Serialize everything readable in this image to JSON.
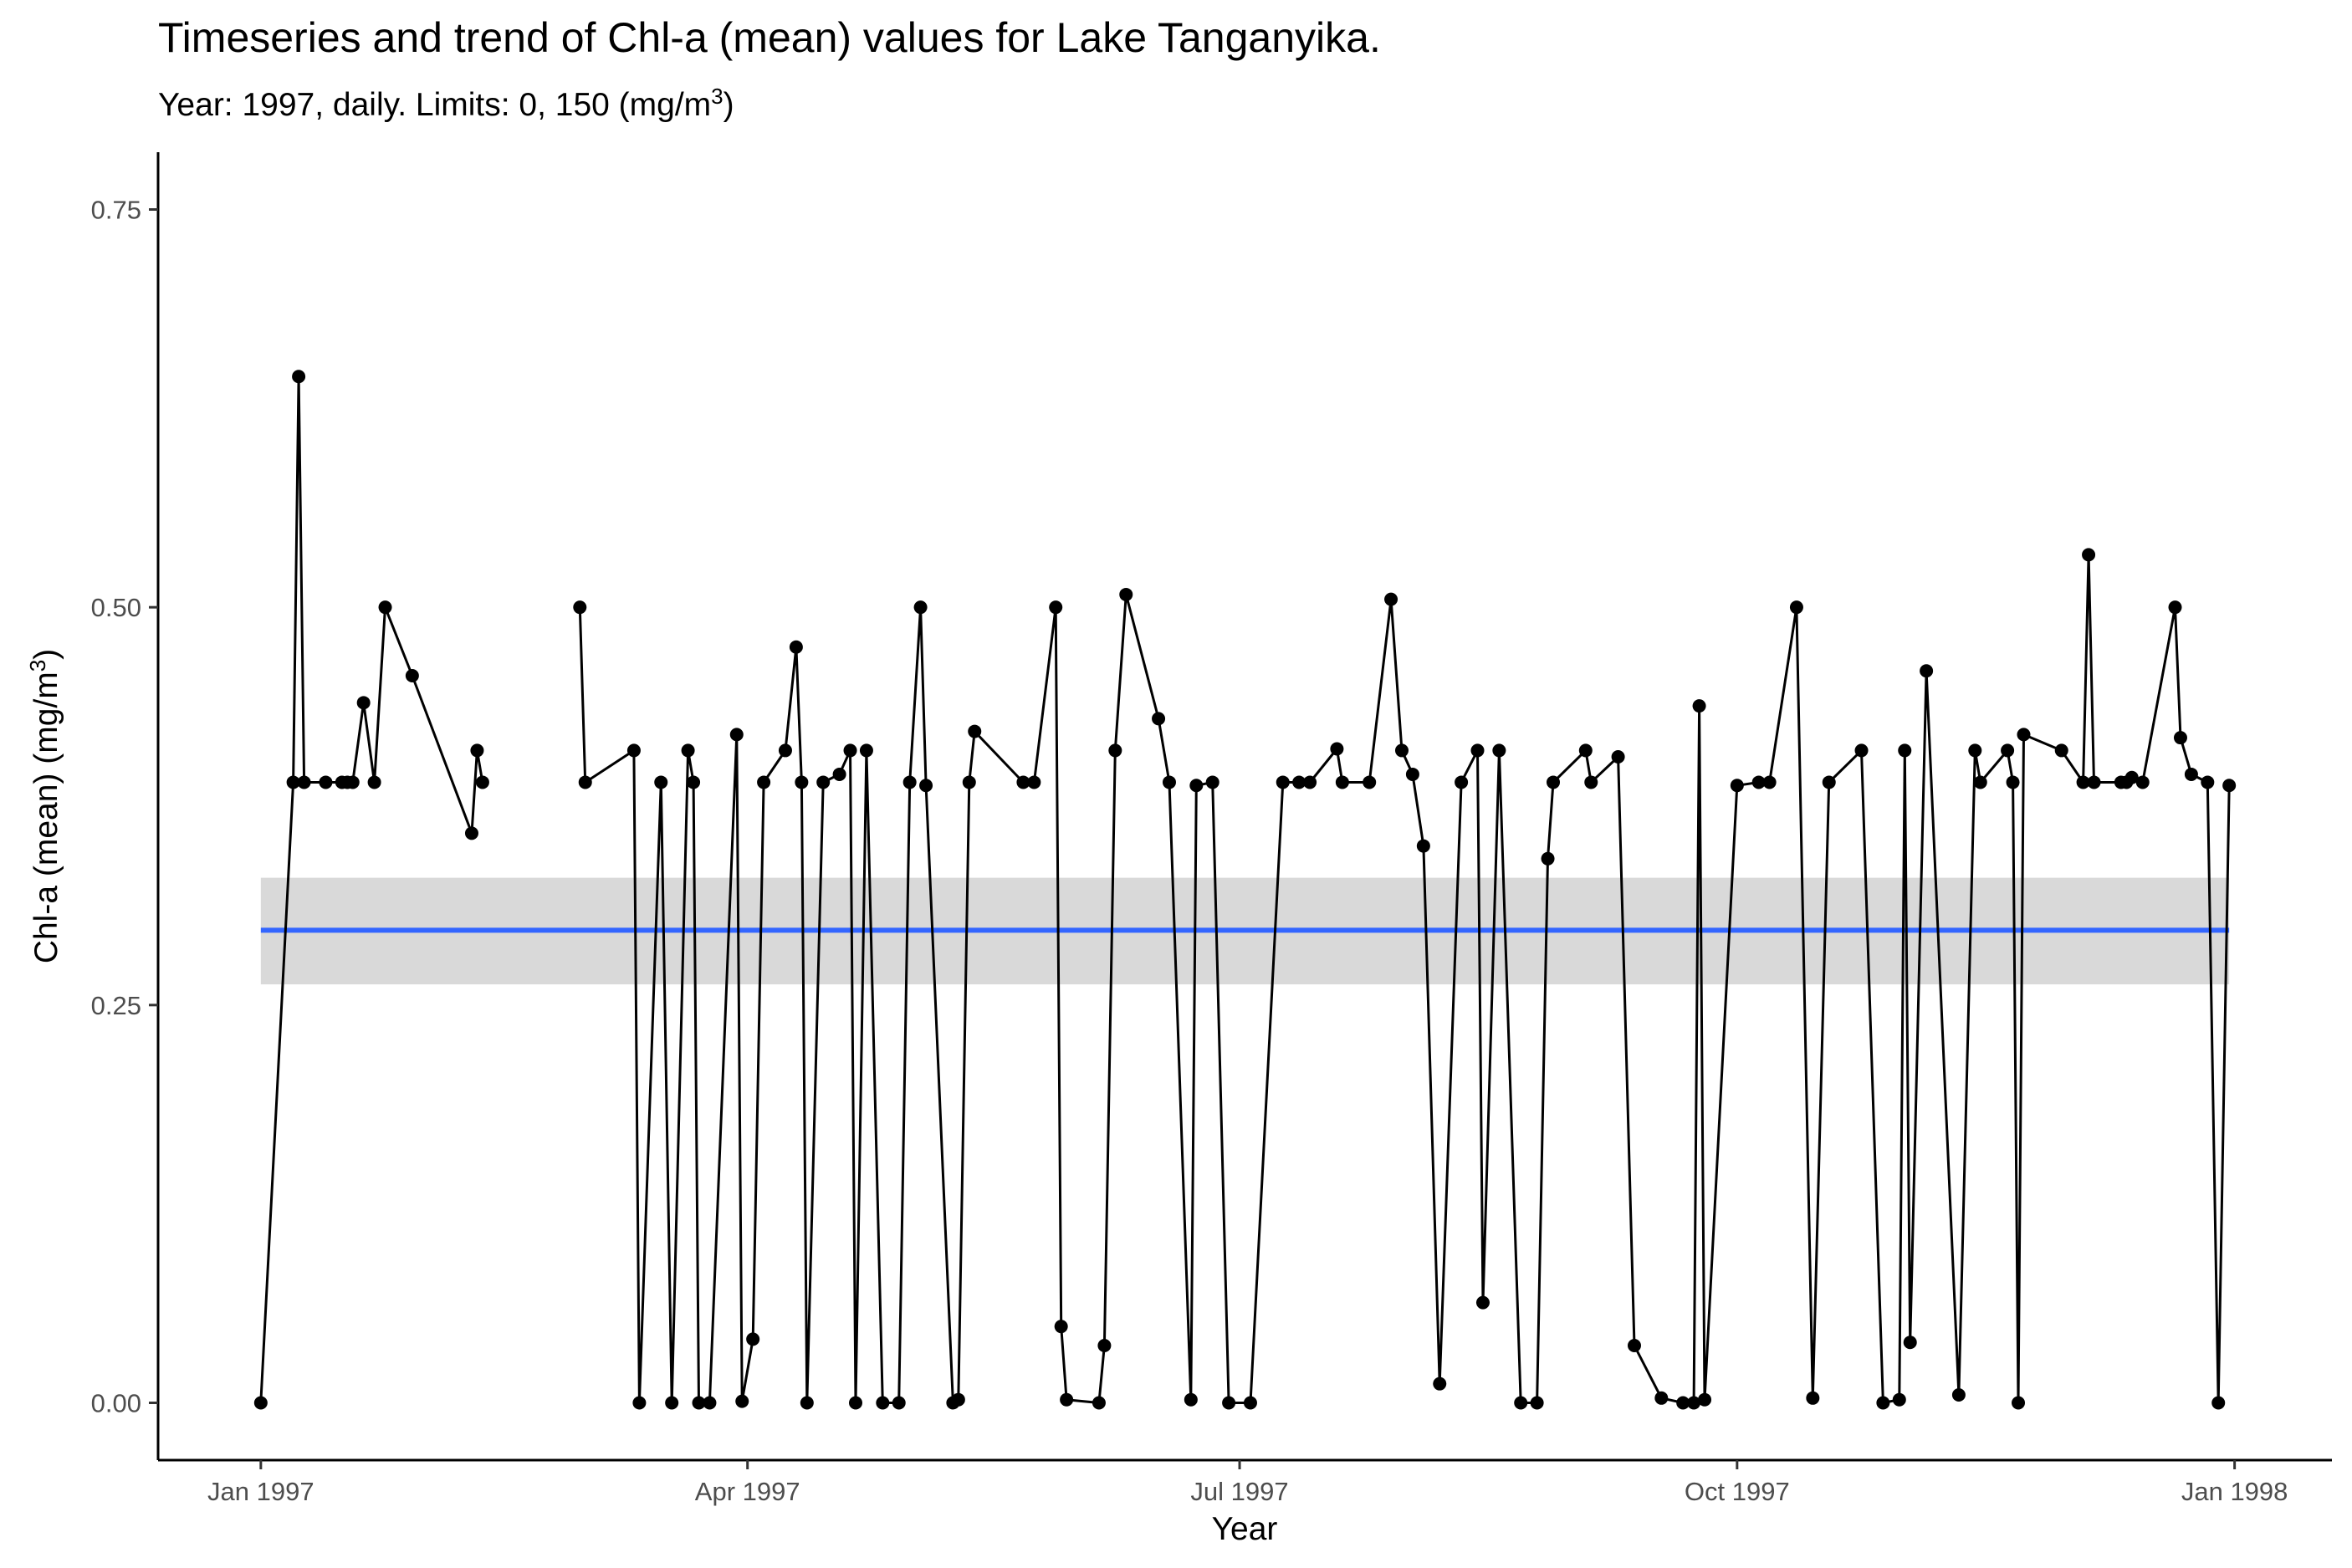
{
  "chart_data": {
    "type": "line",
    "title": "Timeseries  and trend of Chl-a (mean) values for Lake Tanganyika.",
    "subtitle_prefix": "Year: 1997, daily. Limits: 0, 150 (mg/m",
    "subtitle_sup": "3",
    "subtitle_suffix": ")",
    "xlabel": "Year",
    "ylabel_prefix": "Chl-a (mean) (mg/m",
    "ylabel_sup": "3",
    "ylabel_suffix": ")",
    "x_ticks": [
      {
        "date": "1997-01-01",
        "label": "Jan 1997"
      },
      {
        "date": "1997-04-01",
        "label": "Apr 1997"
      },
      {
        "date": "1997-07-01",
        "label": "Jul 1997"
      },
      {
        "date": "1997-10-01",
        "label": "Oct 1997"
      },
      {
        "date": "1998-01-01",
        "label": "Jan 1998"
      }
    ],
    "y_ticks": [
      {
        "value": 0,
        "label": "0.00"
      },
      {
        "value": 0.25,
        "label": "0.25"
      },
      {
        "value": 0.5,
        "label": "0.50"
      },
      {
        "value": 0.75,
        "label": "0.75"
      }
    ],
    "xlim": [
      "1996-12-13",
      "1998-01-19"
    ],
    "ylim": [
      -0.036,
      0.786
    ],
    "grid": false,
    "line_color": "#000000",
    "point_color": "#000000",
    "trend": {
      "value": 0.297,
      "ci_low": 0.263,
      "ci_high": 0.33,
      "start": "1997-01-01",
      "end": "1997-12-31",
      "color": "#3366ff",
      "band_color": "#d9d9d9"
    },
    "series": [
      {
        "values": [
          {
            "x": "1997-01-01",
            "y": 0.0
          },
          {
            "x": "1997-01-07",
            "y": 0.39
          },
          {
            "x": "1997-01-08",
            "y": 0.645
          },
          {
            "x": "1997-01-09",
            "y": 0.39
          },
          {
            "x": "1997-01-13",
            "y": 0.39
          },
          {
            "x": "1997-01-16",
            "y": 0.39
          },
          {
            "x": "1997-01-17",
            "y": 0.39
          },
          {
            "x": "1997-01-18",
            "y": 0.39
          },
          {
            "x": "1997-01-20",
            "y": 0.44
          },
          {
            "x": "1997-01-22",
            "y": 0.39
          },
          {
            "x": "1997-01-24",
            "y": 0.5
          },
          {
            "x": "1997-01-29",
            "y": 0.457
          },
          {
            "x": "1997-02-09",
            "y": 0.358
          },
          {
            "x": "1997-02-10",
            "y": 0.41
          },
          {
            "x": "1997-02-11",
            "y": 0.39
          }
        ]
      },
      {
        "values": [
          {
            "x": "1997-03-01",
            "y": 0.5
          },
          {
            "x": "1997-03-02",
            "y": 0.39
          },
          {
            "x": "1997-03-11",
            "y": 0.41
          },
          {
            "x": "1997-03-12",
            "y": 0.0
          },
          {
            "x": "1997-03-16",
            "y": 0.39
          },
          {
            "x": "1997-03-18",
            "y": 0.0
          },
          {
            "x": "1997-03-21",
            "y": 0.41
          },
          {
            "x": "1997-03-22",
            "y": 0.39
          },
          {
            "x": "1997-03-23",
            "y": 0.0
          },
          {
            "x": "1997-03-25",
            "y": 0.0
          },
          {
            "x": "1997-03-30",
            "y": 0.42
          },
          {
            "x": "1997-03-31",
            "y": 0.001
          },
          {
            "x": "1997-04-02",
            "y": 0.04
          },
          {
            "x": "1997-04-04",
            "y": 0.39
          },
          {
            "x": "1997-04-08",
            "y": 0.41
          },
          {
            "x": "1997-04-10",
            "y": 0.475
          },
          {
            "x": "1997-04-11",
            "y": 0.39
          },
          {
            "x": "1997-04-12",
            "y": 0.0
          },
          {
            "x": "1997-04-15",
            "y": 0.39
          },
          {
            "x": "1997-04-18",
            "y": 0.395
          },
          {
            "x": "1997-04-20",
            "y": 0.41
          },
          {
            "x": "1997-04-21",
            "y": 0.0
          },
          {
            "x": "1997-04-23",
            "y": 0.41
          },
          {
            "x": "1997-04-26",
            "y": 0.0
          },
          {
            "x": "1997-04-29",
            "y": 0.0
          },
          {
            "x": "1997-05-01",
            "y": 0.39
          },
          {
            "x": "1997-05-03",
            "y": 0.5
          },
          {
            "x": "1997-05-04",
            "y": 0.388
          },
          {
            "x": "1997-05-09",
            "y": 0.0
          },
          {
            "x": "1997-05-10",
            "y": 0.002
          },
          {
            "x": "1997-05-12",
            "y": 0.39
          },
          {
            "x": "1997-05-13",
            "y": 0.422
          },
          {
            "x": "1997-05-22",
            "y": 0.39
          },
          {
            "x": "1997-05-24",
            "y": 0.39
          },
          {
            "x": "1997-05-28",
            "y": 0.5
          },
          {
            "x": "1997-05-29",
            "y": 0.048
          },
          {
            "x": "1997-05-30",
            "y": 0.002
          },
          {
            "x": "1997-06-05",
            "y": 0.0
          },
          {
            "x": "1997-06-06",
            "y": 0.036
          },
          {
            "x": "1997-06-08",
            "y": 0.41
          },
          {
            "x": "1997-06-10",
            "y": 0.508
          },
          {
            "x": "1997-06-16",
            "y": 0.43
          },
          {
            "x": "1997-06-18",
            "y": 0.39
          },
          {
            "x": "1997-06-22",
            "y": 0.002
          },
          {
            "x": "1997-06-23",
            "y": 0.388
          },
          {
            "x": "1997-06-26",
            "y": 0.39
          },
          {
            "x": "1997-06-29",
            "y": 0.0
          },
          {
            "x": "1997-07-03",
            "y": 0.0
          },
          {
            "x": "1997-07-09",
            "y": 0.39
          },
          {
            "x": "1997-07-12",
            "y": 0.39
          },
          {
            "x": "1997-07-14",
            "y": 0.39
          },
          {
            "x": "1997-07-19",
            "y": 0.411
          },
          {
            "x": "1997-07-20",
            "y": 0.39
          },
          {
            "x": "1997-07-25",
            "y": 0.39
          },
          {
            "x": "1997-07-29",
            "y": 0.505
          },
          {
            "x": "1997-07-31",
            "y": 0.41
          },
          {
            "x": "1997-08-02",
            "y": 0.395
          },
          {
            "x": "1997-08-04",
            "y": 0.35
          },
          {
            "x": "1997-08-07",
            "y": 0.012
          },
          {
            "x": "1997-08-11",
            "y": 0.39
          },
          {
            "x": "1997-08-14",
            "y": 0.41
          },
          {
            "x": "1997-08-15",
            "y": 0.063
          },
          {
            "x": "1997-08-18",
            "y": 0.41
          },
          {
            "x": "1997-08-22",
            "y": 0.0
          },
          {
            "x": "1997-08-25",
            "y": 0.0
          },
          {
            "x": "1997-08-27",
            "y": 0.342
          },
          {
            "x": "1997-08-28",
            "y": 0.39
          },
          {
            "x": "1997-09-03",
            "y": 0.41
          },
          {
            "x": "1997-09-04",
            "y": 0.39
          },
          {
            "x": "1997-09-09",
            "y": 0.406
          },
          {
            "x": "1997-09-12",
            "y": 0.036
          },
          {
            "x": "1997-09-17",
            "y": 0.003
          },
          {
            "x": "1997-09-21",
            "y": 0.0
          },
          {
            "x": "1997-09-23",
            "y": 0.0
          },
          {
            "x": "1997-09-24",
            "y": 0.438
          },
          {
            "x": "1997-09-25",
            "y": 0.002
          },
          {
            "x": "1997-10-01",
            "y": 0.388
          },
          {
            "x": "1997-10-05",
            "y": 0.39
          },
          {
            "x": "1997-10-07",
            "y": 0.39
          },
          {
            "x": "1997-10-12",
            "y": 0.5
          },
          {
            "x": "1997-10-15",
            "y": 0.003
          },
          {
            "x": "1997-10-18",
            "y": 0.39
          },
          {
            "x": "1997-10-24",
            "y": 0.41
          },
          {
            "x": "1997-10-28",
            "y": 0.0
          },
          {
            "x": "1997-10-31",
            "y": 0.002
          },
          {
            "x": "1997-11-01",
            "y": 0.41
          },
          {
            "x": "1997-11-02",
            "y": 0.038
          },
          {
            "x": "1997-11-05",
            "y": 0.46
          },
          {
            "x": "1997-11-11",
            "y": 0.005
          },
          {
            "x": "1997-11-14",
            "y": 0.41
          },
          {
            "x": "1997-11-15",
            "y": 0.39
          },
          {
            "x": "1997-11-20",
            "y": 0.41
          },
          {
            "x": "1997-11-21",
            "y": 0.39
          },
          {
            "x": "1997-11-22",
            "y": 0.0
          },
          {
            "x": "1997-11-23",
            "y": 0.42
          },
          {
            "x": "1997-11-30",
            "y": 0.41
          },
          {
            "x": "1997-12-04",
            "y": 0.39
          },
          {
            "x": "1997-12-05",
            "y": 0.533
          },
          {
            "x": "1997-12-06",
            "y": 0.39
          },
          {
            "x": "1997-12-11",
            "y": 0.39
          },
          {
            "x": "1997-12-12",
            "y": 0.39
          },
          {
            "x": "1997-12-13",
            "y": 0.393
          },
          {
            "x": "1997-12-15",
            "y": 0.39
          },
          {
            "x": "1997-12-21",
            "y": 0.5
          },
          {
            "x": "1997-12-22",
            "y": 0.418
          },
          {
            "x": "1997-12-24",
            "y": 0.395
          },
          {
            "x": "1997-12-27",
            "y": 0.39
          },
          {
            "x": "1997-12-29",
            "y": 0.0
          },
          {
            "x": "1997-12-31",
            "y": 0.388
          }
        ]
      }
    ]
  }
}
